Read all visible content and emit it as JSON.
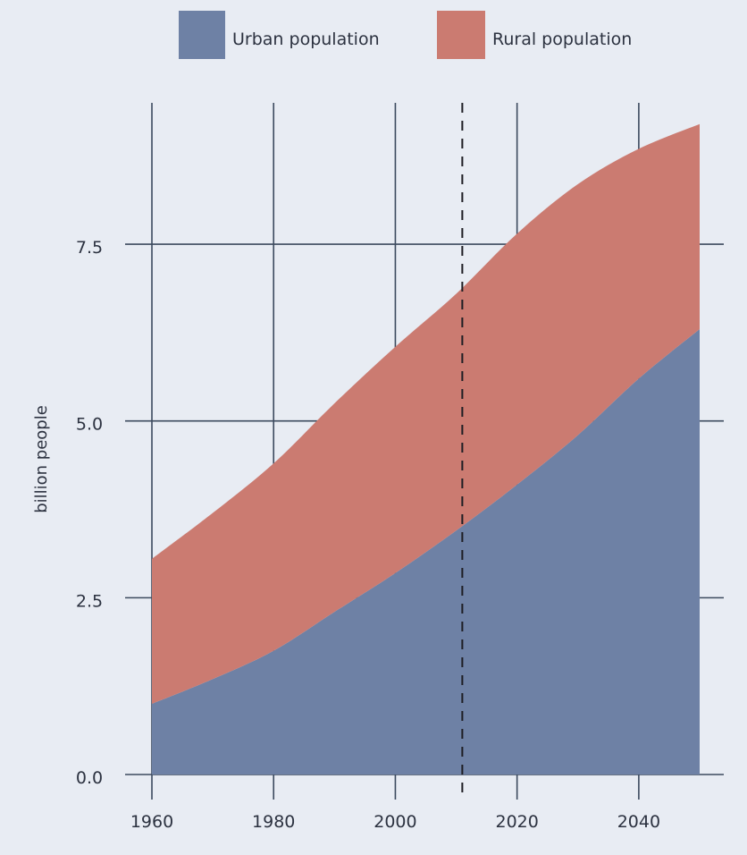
{
  "chart_data": {
    "type": "area",
    "stacked": true,
    "xlabel": "",
    "ylabel": "billion people",
    "xlim": [
      1960,
      2050
    ],
    "ylim": [
      0,
      9.5
    ],
    "xticks": [
      "1960",
      "1980",
      "2000",
      "2020",
      "2040"
    ],
    "yticks": [
      "0.0",
      "2.5",
      "5.0",
      "7.5"
    ],
    "grid": true,
    "legend_position": "top",
    "x": [
      1960,
      1970,
      1980,
      1990,
      2000,
      2010,
      2020,
      2030,
      2040,
      2050
    ],
    "series": [
      {
        "name": "Urban population",
        "color": "#6e81a5",
        "values": [
          1.0,
          1.35,
          1.75,
          2.3,
          2.85,
          3.45,
          4.1,
          4.8,
          5.6,
          6.3
        ]
      },
      {
        "name": "Rural population",
        "color": "#cb7b71",
        "values": [
          2.05,
          2.35,
          2.65,
          2.95,
          3.2,
          3.35,
          3.55,
          3.55,
          3.25,
          2.9
        ]
      }
    ],
    "reference_line": {
      "x": 2011,
      "style": "dashed"
    }
  }
}
